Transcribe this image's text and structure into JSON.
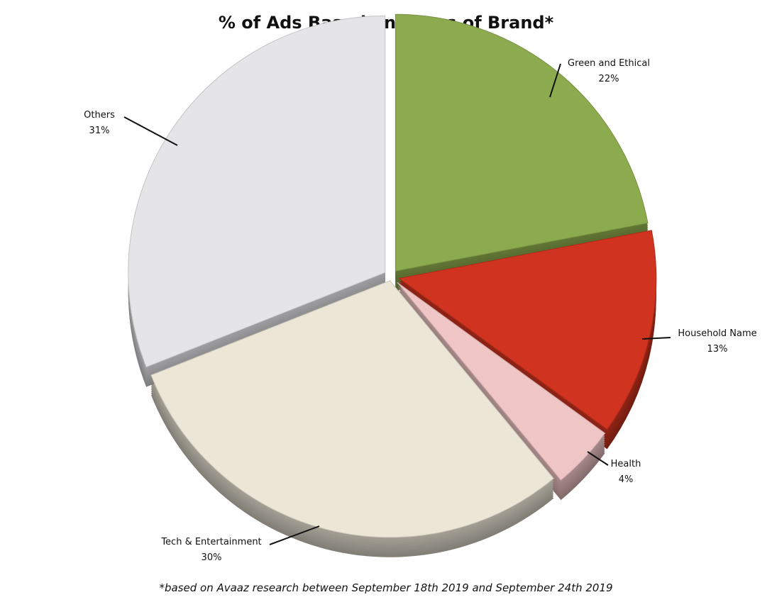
{
  "chart_data": {
    "type": "pie",
    "title": "% of Ads Based on Types of Brand*",
    "footnote": "*based on Avaaz research between September 18th 2019 and September 24th 2019",
    "slices": [
      {
        "label": "Green and Ethical",
        "value": 22,
        "value_label": "22%",
        "color": "#8caa4e"
      },
      {
        "label": "Household Name",
        "value": 13,
        "value_label": "13%",
        "color": "#d0331f"
      },
      {
        "label": "Health",
        "value": 4,
        "value_label": "4%",
        "color": "#f0c5c5"
      },
      {
        "label": "Tech & Entertainment",
        "value": 30,
        "value_label": "30%",
        "color": "#ece6d7"
      },
      {
        "label": "Others",
        "value": 31,
        "value_label": "31%",
        "color": "#e5e5e8"
      }
    ],
    "legend": "none"
  }
}
